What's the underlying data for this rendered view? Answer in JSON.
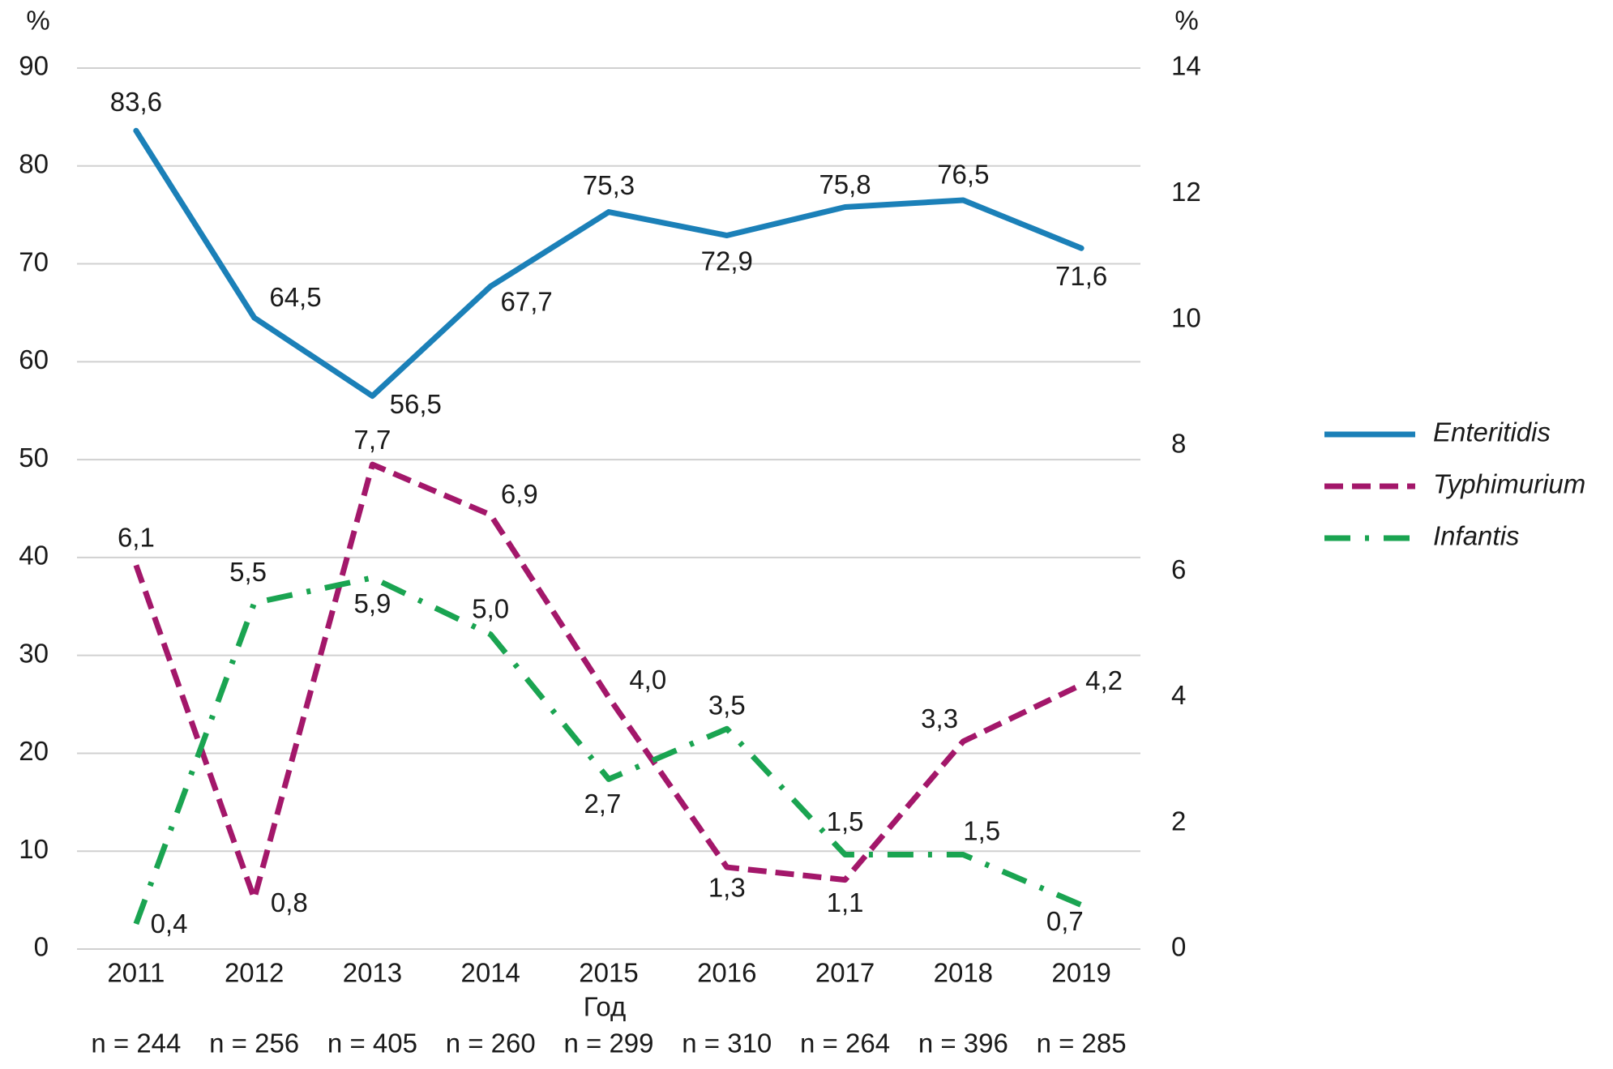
{
  "chart_data": {
    "type": "line",
    "categories": [
      "2011",
      "2012",
      "2013",
      "2014",
      "2015",
      "2016",
      "2017",
      "2018",
      "2019"
    ],
    "x_label": "Год",
    "sample_labels": [
      "n = 244",
      "n = 256",
      "n = 405",
      "n = 260",
      "n = 299",
      "n = 310",
      "n = 264",
      "n = 396",
      "n = 285"
    ],
    "y_unit": "%",
    "y2_unit": "%",
    "ylim": [
      0,
      90
    ],
    "yticks": [
      0,
      10,
      20,
      30,
      40,
      50,
      60,
      70,
      80,
      90
    ],
    "y2lim": [
      0,
      14
    ],
    "y2ticks": [
      0,
      2,
      4,
      6,
      8,
      10,
      12,
      14
    ],
    "grid": true,
    "legend": "right",
    "series": [
      {
        "name": "Enteritidis",
        "color": "#1b80b8",
        "style": "solid",
        "values": [
          83.6,
          64.5,
          56.5,
          67.7,
          75.3,
          72.9,
          75.8,
          76.5,
          71.6
        ],
        "value_labels": [
          "83,6",
          "64,5",
          "56,5",
          "67,7",
          "75,3",
          "72,9",
          "75,8",
          "76,5",
          "71,6"
        ]
      },
      {
        "name": "Typhimurium",
        "color": "#a3176a",
        "style": "dashed",
        "axis": "y2",
        "values": [
          6.1,
          0.8,
          7.7,
          6.9,
          4.0,
          1.3,
          1.1,
          3.3,
          4.2
        ],
        "value_labels": [
          "6,1",
          "0,8",
          "7,7",
          "6,9",
          "4,0",
          "1,3",
          "1,1",
          "3,3",
          "4,2"
        ]
      },
      {
        "name": "Infantis",
        "color": "#1aa451",
        "style": "dashdot",
        "axis": "y2",
        "values": [
          0.4,
          5.5,
          5.9,
          5.0,
          2.7,
          3.5,
          1.5,
          1.5,
          0.7
        ],
        "value_labels": [
          "0,4",
          "5,5",
          "5,9",
          "5,0",
          "2,7",
          "3,5",
          "1,5",
          "1,5",
          "0,7"
        ]
      }
    ]
  }
}
